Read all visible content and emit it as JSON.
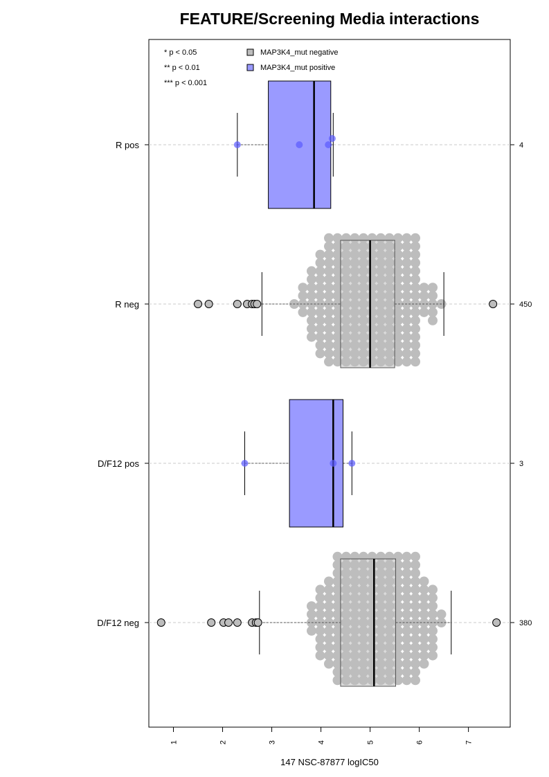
{
  "chart_data": {
    "type": "box-beeswarm",
    "title": "FEATURE/Screening Media interactions",
    "xlabel": "147 NSC-87877 logIC50",
    "xlim": [
      0.5,
      7.85
    ],
    "xticks": [
      1,
      2,
      3,
      4,
      5,
      6,
      7
    ],
    "grid": "horizontal dashed lines at each group",
    "legend_significance": [
      "* p < 0.05",
      "** p < 0.01",
      "*** p < 0.001"
    ],
    "legend": [
      {
        "label": "MAP3K4_mut negative",
        "color": "#bdbdbd"
      },
      {
        "label": "MAP3K4_mut positive",
        "color": "#9a9aff"
      }
    ],
    "groups": [
      {
        "label": "R pos",
        "count": "4",
        "status": "positive",
        "q1": 2.93,
        "median": 3.86,
        "q3": 4.2,
        "whisker_low": 2.3,
        "whisker_high": 4.25,
        "points": [
          2.3,
          3.56,
          4.15,
          4.23
        ],
        "outliers": [],
        "n_swarm": 0
      },
      {
        "label": "R neg",
        "count": "450",
        "status": "negative",
        "q1": 4.4,
        "median": 5.0,
        "q3": 5.5,
        "whisker_low": 2.8,
        "whisker_high": 6.5,
        "points": [],
        "outliers": [
          1.5,
          1.72,
          2.3,
          2.5,
          2.6,
          2.65,
          2.7,
          7.5
        ],
        "n_swarm": 430
      },
      {
        "label": "D/F12 pos",
        "count": "3",
        "status": "positive",
        "q1": 3.36,
        "median": 4.25,
        "q3": 4.45,
        "whisker_low": 2.45,
        "whisker_high": 4.63,
        "points": [
          2.45,
          4.25,
          4.63
        ],
        "outliers": [],
        "n_swarm": 0
      },
      {
        "label": "D/F12 neg",
        "count": "380",
        "status": "negative",
        "q1": 4.4,
        "median": 5.08,
        "q3": 5.52,
        "whisker_low": 2.75,
        "whisker_high": 6.65,
        "points": [],
        "outliers": [
          0.75,
          1.77,
          2.02,
          2.12,
          2.3,
          2.6,
          2.68,
          2.72,
          7.57
        ],
        "n_swarm": 370
      }
    ]
  }
}
